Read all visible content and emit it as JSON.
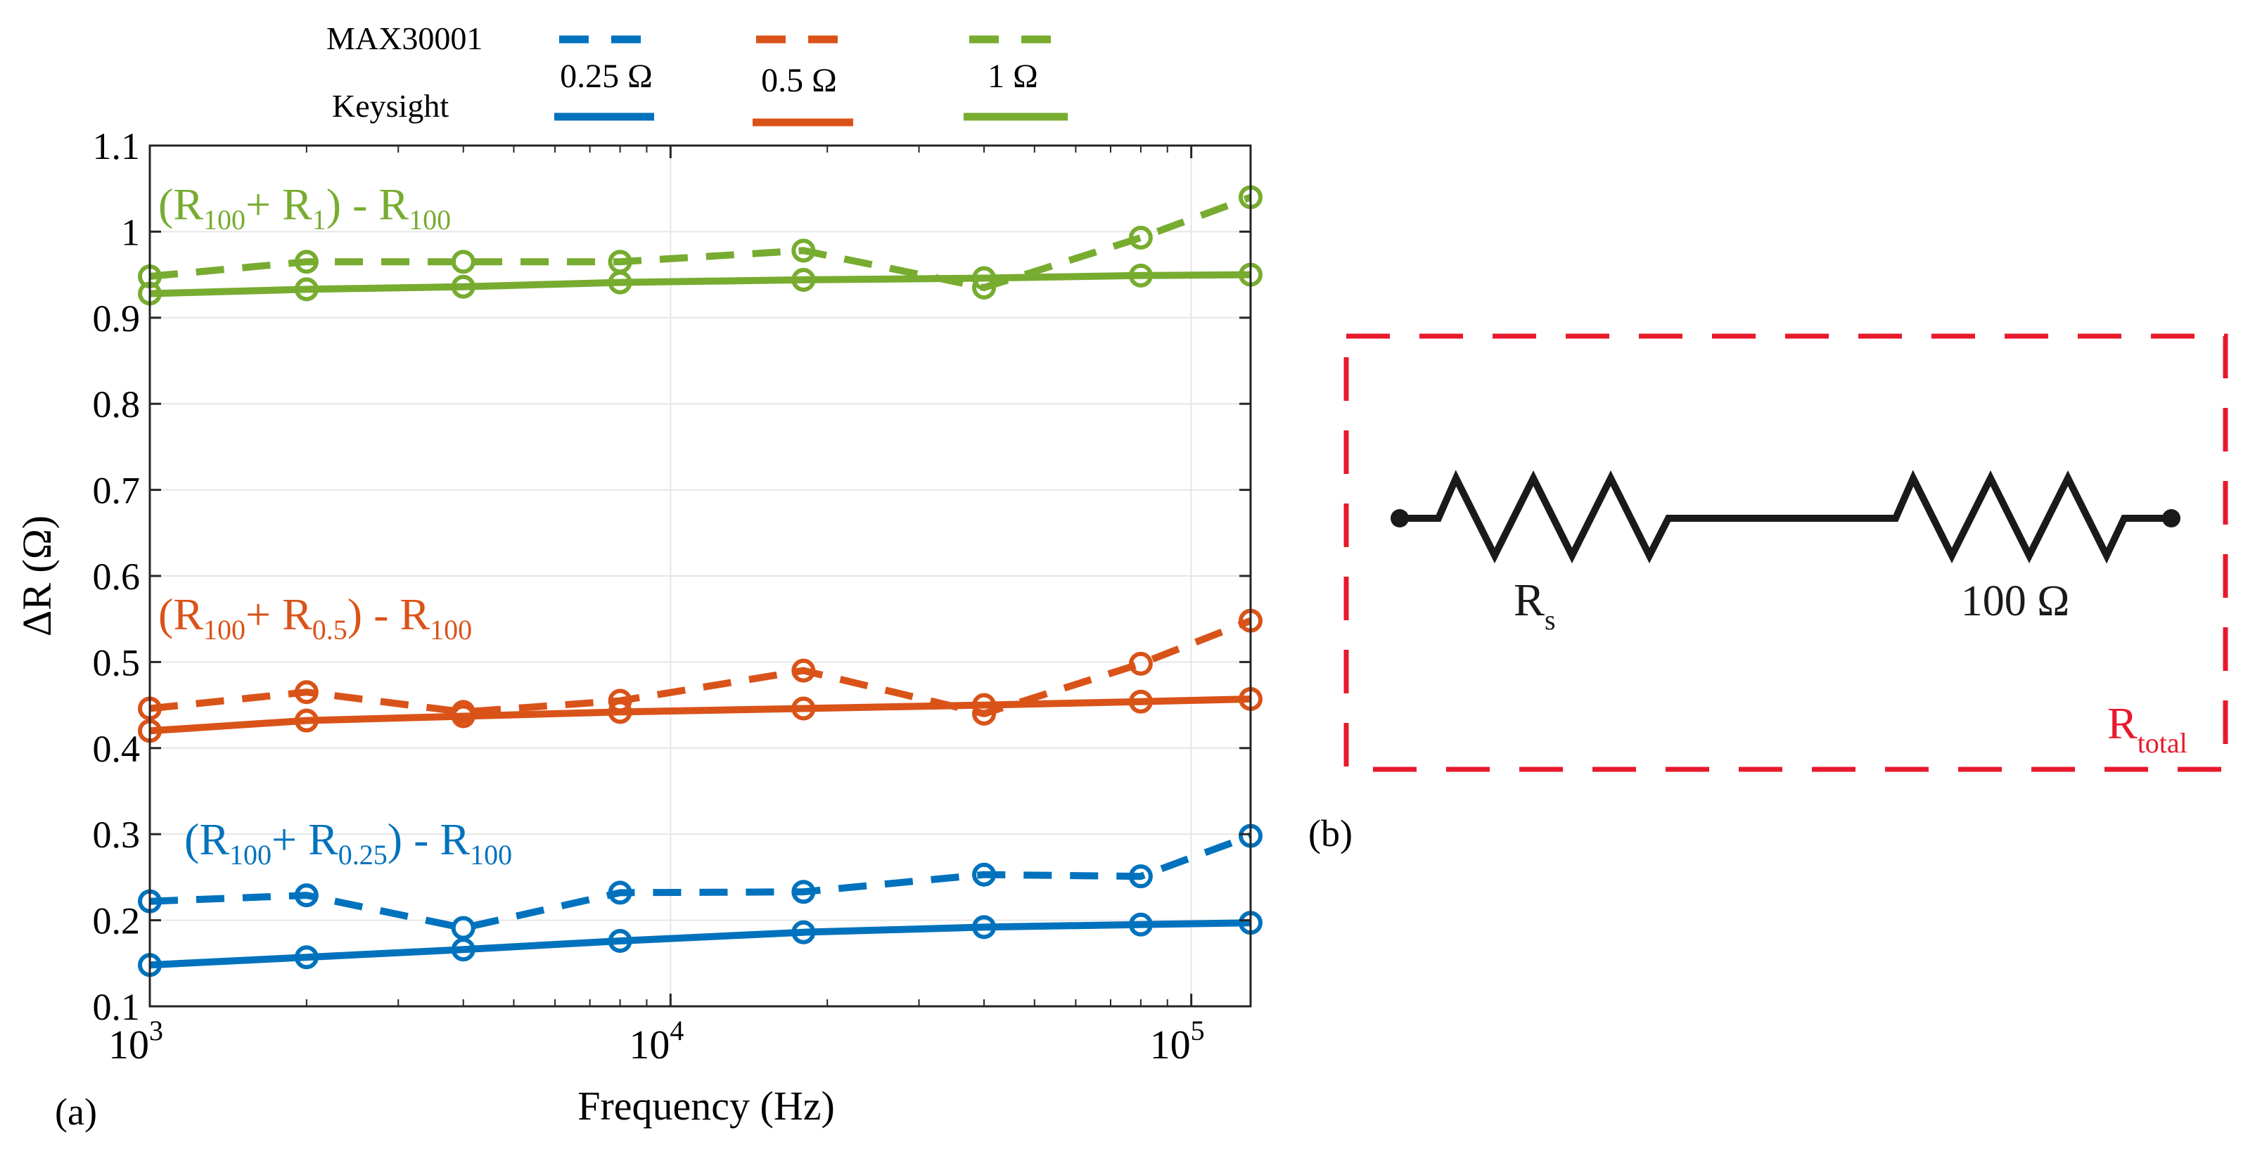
{
  "chart_data": {
    "type": "line",
    "panel_label": "(a)",
    "xlabel": "Frequency (Hz)",
    "ylabel": "ΔR (Ω)",
    "xscale": "log",
    "xlim": [
      1000,
      130000
    ],
    "ylim": [
      0.1,
      1.1
    ],
    "yticks": [
      "0.1",
      "0.2",
      "0.3",
      "0.4",
      "0.5",
      "0.6",
      "0.7",
      "0.8",
      "0.9",
      "1",
      "1.1"
    ],
    "xticks": [
      {
        "base": "10",
        "exp": "3",
        "value": 1000
      },
      {
        "base": "10",
        "exp": "4",
        "value": 10000
      },
      {
        "base": "10",
        "exp": "5",
        "value": 100000
      }
    ],
    "grid": true,
    "legend": {
      "row_labels": [
        "MAX30001",
        "Keysight"
      ],
      "entries": [
        "0.25 Ω",
        "0.5 Ω",
        "1 Ω"
      ]
    },
    "x": [
      1000,
      2000,
      4000,
      8000,
      18000,
      40000,
      80000,
      130000
    ],
    "series": [
      {
        "name": "MAX30001 1 Ω",
        "color": "#77ac30",
        "dash": true,
        "values": [
          0.948,
          0.965,
          0.965,
          0.965,
          0.978,
          0.935,
          0.993,
          1.04
        ]
      },
      {
        "name": "Keysight 1 Ω",
        "color": "#77ac30",
        "dash": false,
        "values": [
          0.928,
          0.933,
          0.936,
          0.941,
          0.944,
          0.946,
          0.949,
          0.95
        ]
      },
      {
        "name": "MAX30001 0.5 Ω",
        "color": "#d95319",
        "dash": true,
        "values": [
          0.446,
          0.465,
          0.442,
          0.455,
          0.49,
          0.44,
          0.498,
          0.548
        ]
      },
      {
        "name": "Keysight 0.5 Ω",
        "color": "#d95319",
        "dash": false,
        "values": [
          0.42,
          0.432,
          0.437,
          0.442,
          0.446,
          0.45,
          0.454,
          0.457
        ]
      },
      {
        "name": "MAX30001 0.25 Ω",
        "color": "#0072bd",
        "dash": true,
        "values": [
          0.222,
          0.229,
          0.191,
          0.232,
          0.233,
          0.253,
          0.251,
          0.298
        ]
      },
      {
        "name": "Keysight 0.25 Ω",
        "color": "#0072bd",
        "dash": false,
        "values": [
          0.148,
          0.157,
          0.166,
          0.176,
          0.186,
          0.192,
          0.195,
          0.197
        ]
      }
    ],
    "annotations": [
      {
        "color": "#77ac30",
        "open": "(R",
        "sub1": "100",
        "mid": "+ R",
        "sub2": "1",
        "close": ") - R",
        "sub3": "100"
      },
      {
        "color": "#d95319",
        "open": "(R",
        "sub1": "100",
        "mid": "+ R",
        "sub2": "0.5",
        "close": ") - R",
        "sub3": "100"
      },
      {
        "color": "#0072bd",
        "open": "(R",
        "sub1": "100",
        "mid": "+ R",
        "sub2": "0.25",
        "close": ") - R",
        "sub3": "100"
      }
    ]
  },
  "schematic": {
    "panel_label": "(b)",
    "resistor_s": {
      "symbol": "R",
      "sub": "s"
    },
    "resistor_fixed_label": "100 Ω",
    "total": {
      "symbol": "R",
      "sub": "total"
    },
    "box_color": "#e8192c"
  }
}
